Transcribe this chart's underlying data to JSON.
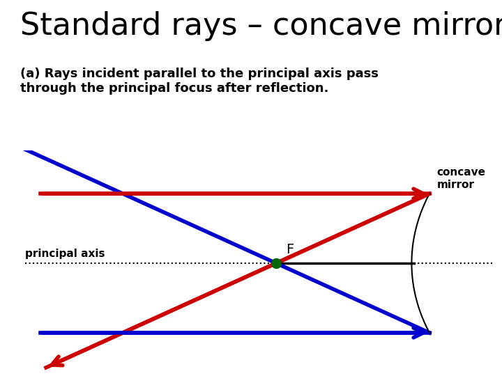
{
  "title": "Standard rays – concave mirror",
  "subtitle": "(a) Rays incident parallel to the principal axis pass\nthrough the principal focus after reflection.",
  "title_fontsize": 32,
  "subtitle_fontsize": 13,
  "bg_color": "#ffffff",
  "mirror_color": "#000000",
  "axis_color": "#000000",
  "red_color": "#cc0000",
  "blue_color": "#0000cc",
  "focus_color": "#006600",
  "arrow_lw": 4.0,
  "axis_lw": 2.0,
  "mirror_lw": 1.5
}
